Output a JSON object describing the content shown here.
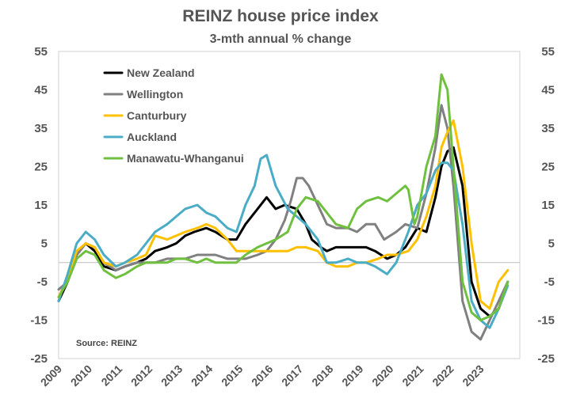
{
  "chart_data": {
    "type": "line",
    "title": "REINZ house price index",
    "subtitle": "3-mth annual % change",
    "source": "Source:  REINZ",
    "ylim": [
      -25,
      55
    ],
    "yticks": [
      -25,
      -15,
      -5,
      5,
      15,
      25,
      35,
      45,
      55
    ],
    "y2ticks": [
      -25,
      -15,
      -5,
      5,
      15,
      25,
      35,
      45,
      55
    ],
    "xlim": [
      2009.0,
      2024.3
    ],
    "xticks": [
      "2009",
      "2010",
      "2011",
      "2012",
      "2013",
      "2014",
      "2015",
      "2016",
      "2017",
      "2018",
      "2019",
      "2020",
      "2021",
      "2022",
      "2023"
    ],
    "reference_line": 0,
    "legend_position": "top-left",
    "series": [
      {
        "name": "New Zealand",
        "color": "#000000",
        "x": [
          2009.0,
          2009.3,
          2009.6,
          2009.9,
          2010.2,
          2010.5,
          2010.9,
          2011.2,
          2011.6,
          2011.9,
          2012.2,
          2012.6,
          2012.9,
          2013.2,
          2013.5,
          2013.9,
          2014.2,
          2014.6,
          2014.9,
          2015.2,
          2015.6,
          2015.9,
          2016.2,
          2016.5,
          2016.9,
          2017.2,
          2017.4,
          2017.7,
          2017.9,
          2018.2,
          2018.6,
          2018.9,
          2019.2,
          2019.5,
          2019.9,
          2020.2,
          2020.5,
          2020.9,
          2021.2,
          2021.5,
          2021.7,
          2021.9,
          2022.1,
          2022.4,
          2022.7,
          2023.0,
          2023.3,
          2023.6,
          2023.9
        ],
        "values": [
          -10,
          -5,
          2,
          5,
          3,
          -1,
          -2,
          -1,
          0,
          1,
          3,
          4,
          5,
          7,
          8,
          9,
          8,
          6,
          6,
          10,
          14,
          17,
          14,
          15,
          14,
          10,
          6,
          4,
          3,
          4,
          4,
          4,
          4,
          3,
          1,
          2,
          4,
          9,
          8,
          17,
          25,
          29,
          30,
          20,
          -5,
          -12,
          -14,
          -12,
          -5
        ]
      },
      {
        "name": "Wellington",
        "color": "#808080",
        "x": [
          2009.0,
          2009.3,
          2009.6,
          2009.9,
          2010.2,
          2010.5,
          2010.9,
          2011.2,
          2011.6,
          2011.9,
          2012.2,
          2012.6,
          2012.9,
          2013.2,
          2013.6,
          2013.9,
          2014.2,
          2014.6,
          2014.9,
          2015.2,
          2015.6,
          2015.9,
          2016.2,
          2016.5,
          2016.7,
          2016.9,
          2017.1,
          2017.3,
          2017.6,
          2017.9,
          2018.2,
          2018.6,
          2018.9,
          2019.2,
          2019.5,
          2019.8,
          2020.2,
          2020.5,
          2020.9,
          2021.2,
          2021.5,
          2021.7,
          2021.9,
          2022.1,
          2022.4,
          2022.7,
          2023.0,
          2023.3,
          2023.6,
          2023.9
        ],
        "values": [
          -7,
          -5,
          2,
          5,
          4,
          0,
          -2,
          -1,
          0,
          0,
          0,
          1,
          1,
          1,
          2,
          2,
          2,
          1,
          1,
          1,
          2,
          3,
          6,
          11,
          16,
          22,
          22,
          20,
          15,
          10,
          9,
          9,
          8,
          10,
          10,
          6,
          8,
          10,
          9,
          18,
          30,
          41,
          35,
          20,
          -10,
          -18,
          -20,
          -15,
          -10,
          -5
        ]
      },
      {
        "name": "Canturbury",
        "color": "#ffc000",
        "x": [
          2009.0,
          2009.3,
          2009.6,
          2009.9,
          2010.2,
          2010.5,
          2010.9,
          2011.2,
          2011.6,
          2011.9,
          2012.2,
          2012.6,
          2012.9,
          2013.2,
          2013.6,
          2013.9,
          2014.2,
          2014.6,
          2014.9,
          2015.2,
          2015.6,
          2015.9,
          2016.2,
          2016.6,
          2016.9,
          2017.2,
          2017.6,
          2017.9,
          2018.2,
          2018.6,
          2018.9,
          2019.2,
          2019.6,
          2019.9,
          2020.2,
          2020.6,
          2020.9,
          2021.2,
          2021.5,
          2021.7,
          2021.9,
          2022.1,
          2022.4,
          2022.7,
          2023.0,
          2023.3,
          2023.6,
          2023.9
        ],
        "values": [
          -9,
          -4,
          3,
          5,
          4,
          0,
          -1,
          0,
          1,
          2,
          7,
          6,
          7,
          8,
          9,
          10,
          9,
          6,
          3,
          3,
          3,
          3,
          3,
          3,
          4,
          4,
          3,
          0,
          -1,
          -1,
          0,
          0,
          1,
          2,
          2,
          3,
          6,
          12,
          20,
          30,
          34,
          37,
          25,
          5,
          -10,
          -12,
          -5,
          -2
        ]
      },
      {
        "name": "Auckland",
        "color": "#4bacc6",
        "x": [
          2009.0,
          2009.3,
          2009.6,
          2009.9,
          2010.2,
          2010.5,
          2010.9,
          2011.2,
          2011.6,
          2011.9,
          2012.2,
          2012.6,
          2012.9,
          2013.2,
          2013.6,
          2013.9,
          2014.2,
          2014.6,
          2014.9,
          2015.2,
          2015.5,
          2015.7,
          2015.9,
          2016.2,
          2016.6,
          2016.9,
          2017.2,
          2017.6,
          2017.9,
          2018.2,
          2018.6,
          2018.9,
          2019.2,
          2019.5,
          2019.9,
          2020.2,
          2020.6,
          2020.9,
          2021.2,
          2021.5,
          2021.7,
          2021.9,
          2022.1,
          2022.4,
          2022.7,
          2023.0,
          2023.3,
          2023.6,
          2023.9
        ],
        "values": [
          -10,
          -3,
          5,
          8,
          6,
          2,
          -1,
          0,
          2,
          5,
          8,
          10,
          12,
          14,
          15,
          13,
          12,
          9,
          8,
          15,
          20,
          27,
          28,
          20,
          14,
          12,
          10,
          6,
          0,
          0,
          1,
          0,
          0,
          -1,
          -3,
          0,
          8,
          15,
          18,
          24,
          26,
          26,
          24,
          10,
          -10,
          -15,
          -17,
          -12,
          -6
        ]
      },
      {
        "name": "Manawatu-Whanganui",
        "color": "#70c040",
        "x": [
          2009.0,
          2009.3,
          2009.6,
          2009.9,
          2010.2,
          2010.5,
          2010.9,
          2011.2,
          2011.6,
          2011.9,
          2012.2,
          2012.6,
          2012.9,
          2013.2,
          2013.6,
          2013.9,
          2014.2,
          2014.6,
          2014.9,
          2015.2,
          2015.6,
          2015.9,
          2016.2,
          2016.6,
          2016.9,
          2017.2,
          2017.6,
          2017.9,
          2018.2,
          2018.6,
          2018.9,
          2019.2,
          2019.6,
          2019.9,
          2020.2,
          2020.5,
          2020.6,
          2020.8,
          2020.9,
          2021.2,
          2021.5,
          2021.7,
          2021.9,
          2022.1,
          2022.4,
          2022.7,
          2023.0,
          2023.3,
          2023.6,
          2023.9
        ],
        "values": [
          -9,
          -5,
          1,
          3,
          2,
          -2,
          -4,
          -3,
          -1,
          0,
          0,
          0,
          1,
          1,
          0,
          1,
          0,
          0,
          0,
          2,
          4,
          5,
          6,
          8,
          14,
          17,
          16,
          13,
          10,
          9,
          14,
          16,
          17,
          16,
          18,
          20,
          19,
          10,
          12,
          25,
          33,
          49,
          45,
          25,
          -5,
          -13,
          -15,
          -14,
          -12,
          -5
        ]
      }
    ]
  }
}
